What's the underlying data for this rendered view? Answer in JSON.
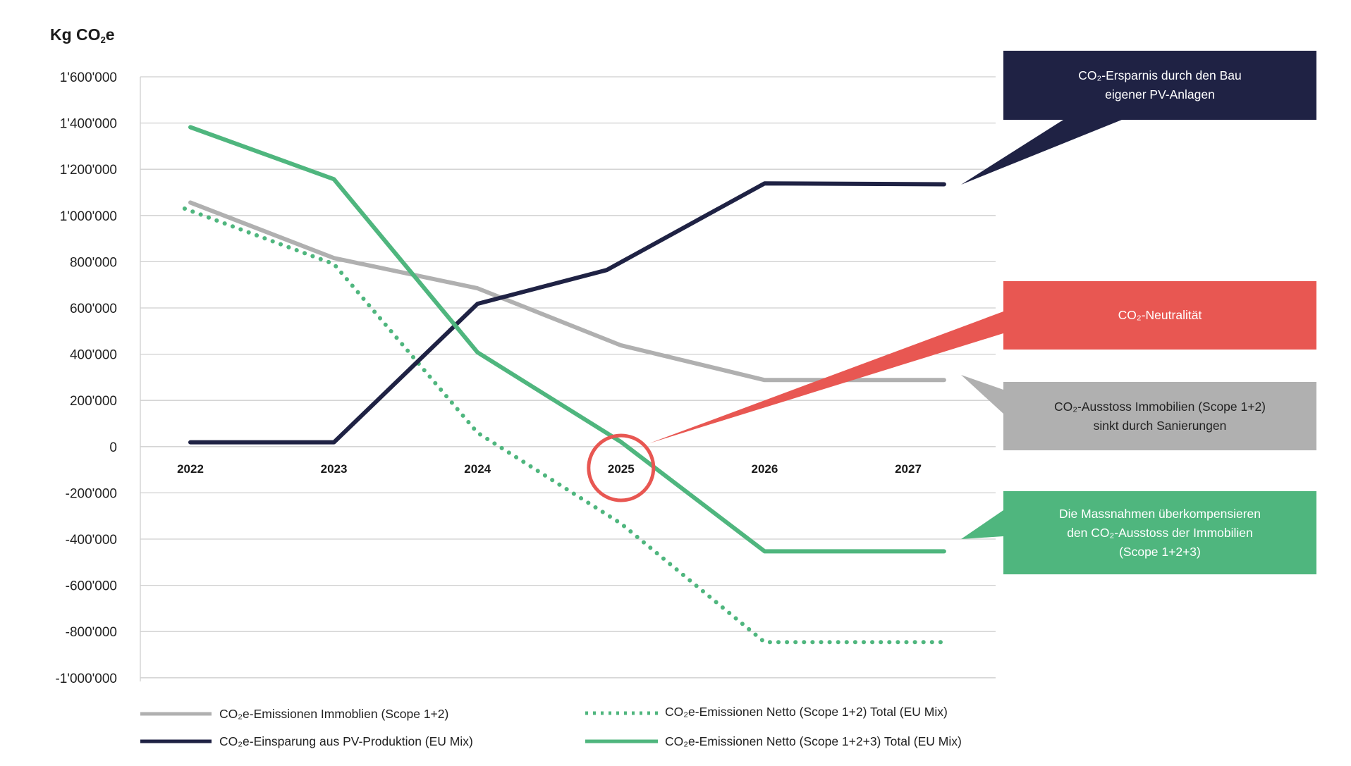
{
  "colors": {
    "navy": "#1f2244",
    "green": "#4fb67e",
    "red": "#e85752",
    "grey": "#b0b0b0",
    "grid": "#cfcfcf"
  },
  "chart_data": {
    "type": "line",
    "ylabel_main": "Kg CO",
    "ylabel_sub": "2",
    "ylabel_suffix": "e",
    "ylim": [
      -1000000,
      1600000
    ],
    "yticks": [
      1600000,
      1400000,
      1200000,
      1000000,
      800000,
      600000,
      400000,
      200000,
      0,
      -200000,
      -400000,
      -600000,
      -800000,
      -1000000
    ],
    "ytick_labels": [
      "1'600'000",
      "1'400'000",
      "1'200'000",
      "1'000'000",
      "800'000",
      "600'000",
      "400'000",
      "200'000",
      "0",
      "-200'000",
      "-400'000",
      "-600'000",
      "-800'000",
      "-1'000'000"
    ],
    "xticks": [
      2022,
      2023,
      2024,
      2025,
      2026,
      2027
    ],
    "xtick_labels": [
      "2022",
      "2023",
      "2024",
      "2025",
      "2026",
      "2027"
    ],
    "grid": true,
    "legend_position": "bottom",
    "series": [
      {
        "name": "CO₂e-Emissionen Immoblien (Scope 1+2)",
        "color": "grey",
        "style": "solid",
        "x": [
          2022,
          2023,
          2024,
          2025,
          2026,
          2027.25
        ],
        "y": [
          1056000,
          816000,
          685000,
          438000,
          288000,
          288000
        ]
      },
      {
        "name": "CO₂e-Einsparung aus PV-Produktion (EU Mix)",
        "color": "navy",
        "style": "solid",
        "x": [
          2022,
          2023,
          2024,
          2024.9,
          2026,
          2027.25
        ],
        "y": [
          19000,
          19000,
          618000,
          764000,
          1139000,
          1135000
        ]
      },
      {
        "name": "CO₂e-Emissionen Netto (Scope 1+2) Total (EU Mix)",
        "color": "green",
        "style": "dotted",
        "x": [
          2021.96,
          2023,
          2024,
          2025,
          2026,
          2027.25
        ],
        "y": [
          1030000,
          790000,
          60000,
          -333000,
          -846000,
          -846000
        ]
      },
      {
        "name": "CO₂e-Emissionen Netto (Scope 1+2+3) Total (EU Mix)",
        "color": "green",
        "style": "solid",
        "x": [
          2022,
          2023,
          2024,
          2025,
          2026,
          2027.25
        ],
        "y": [
          1382000,
          1157000,
          408000,
          20000,
          -453000,
          -453000
        ]
      }
    ],
    "highlight": {
      "x": 2025,
      "label": "2025",
      "color": "red"
    },
    "annotations": [
      {
        "text": "CO₂-Ersparnis durch den Bau\neigener PV-Anlagen",
        "color": "navy",
        "text_color": "#ffffff"
      },
      {
        "text": "CO₂-Neutralität",
        "color": "red",
        "text_color": "#ffffff"
      },
      {
        "text": "CO₂-Ausstoss Immobilien (Scope 1+2)\nsinkt durch Sanierungen",
        "color": "grey",
        "text_color": "#222222"
      },
      {
        "text": "Die Massnahmen überkompensieren\nden CO₂-Ausstoss der Immobilien\n(Scope 1+2+3)",
        "color": "green",
        "text_color": "#ffffff"
      }
    ]
  }
}
